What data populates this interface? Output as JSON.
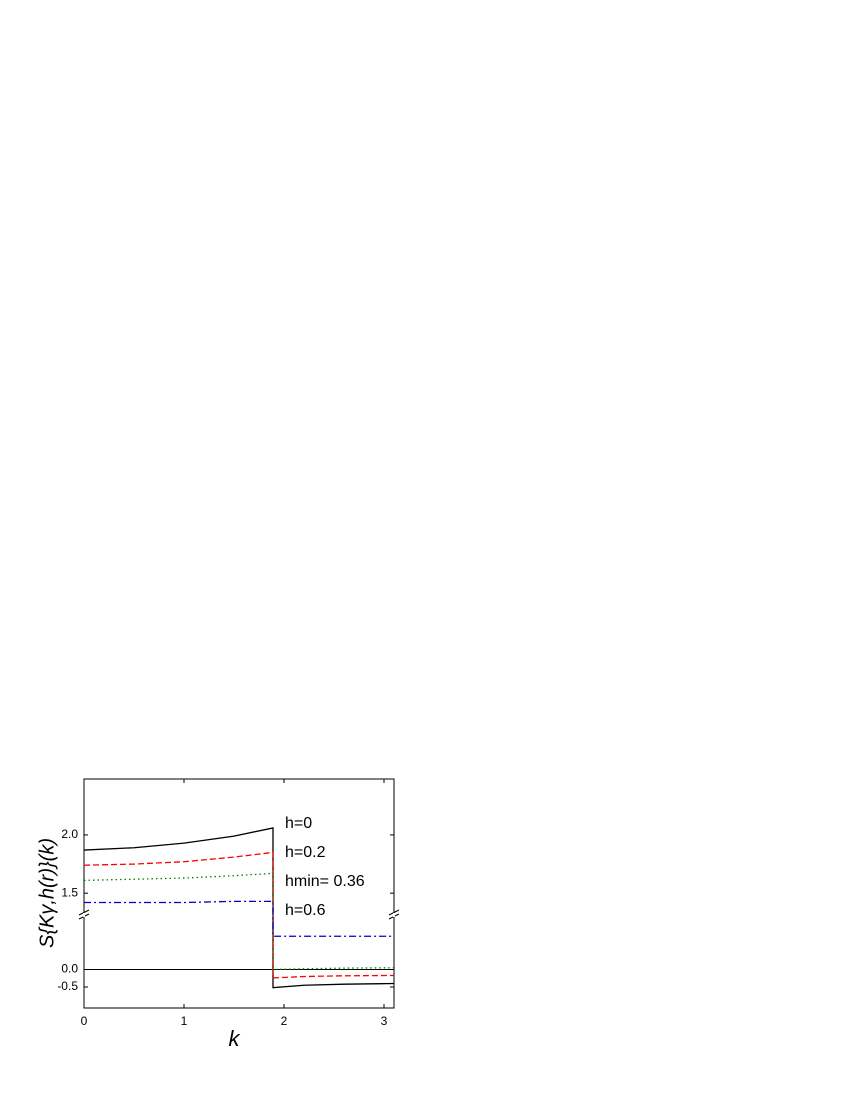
{
  "chart_data": {
    "type": "line",
    "x_label": "k",
    "y_label": "S{Kγ,h(r)}(k)",
    "x": [
      0,
      0.5,
      1,
      1.5,
      1.89,
      1.89,
      2.2,
      2.6,
      3.1
    ],
    "series": [
      {
        "name": "h=0",
        "color": "#000000",
        "dash": "",
        "values": [
          1.87,
          1.89,
          1.93,
          1.99,
          2.06,
          -0.52,
          -0.45,
          -0.42,
          -0.4
        ]
      },
      {
        "name": "h=0.2",
        "color": "#ff0000",
        "dash": "6 3",
        "values": [
          1.74,
          1.75,
          1.77,
          1.81,
          1.85,
          -0.24,
          -0.2,
          -0.18,
          -0.17
        ]
      },
      {
        "name": "hmin= 0.36",
        "color": "#008000",
        "dash": "1.5 3",
        "values": [
          1.61,
          1.62,
          1.63,
          1.65,
          1.67,
          0.0,
          0.02,
          0.04,
          0.05
        ]
      },
      {
        "name": "h=0.6",
        "color": "#0000cc",
        "dash": "7 3 2 3",
        "values": [
          1.42,
          1.42,
          1.42,
          1.43,
          1.43,
          0.95,
          0.95,
          0.95,
          0.95
        ]
      }
    ],
    "xlim": [
      0,
      3.1
    ],
    "xticks": [
      0,
      1,
      2,
      3
    ],
    "ylim": [
      -1.1,
      2.48
    ],
    "ybreak": [
      1.5,
      1.33
    ],
    "yticks": [
      {
        "value": -0.5,
        "label": "-0.5"
      },
      {
        "value": 0,
        "label": "0.0"
      },
      {
        "value": 1.5,
        "label": "1.5"
      },
      {
        "value": 2,
        "label": "2.0"
      }
    ]
  }
}
